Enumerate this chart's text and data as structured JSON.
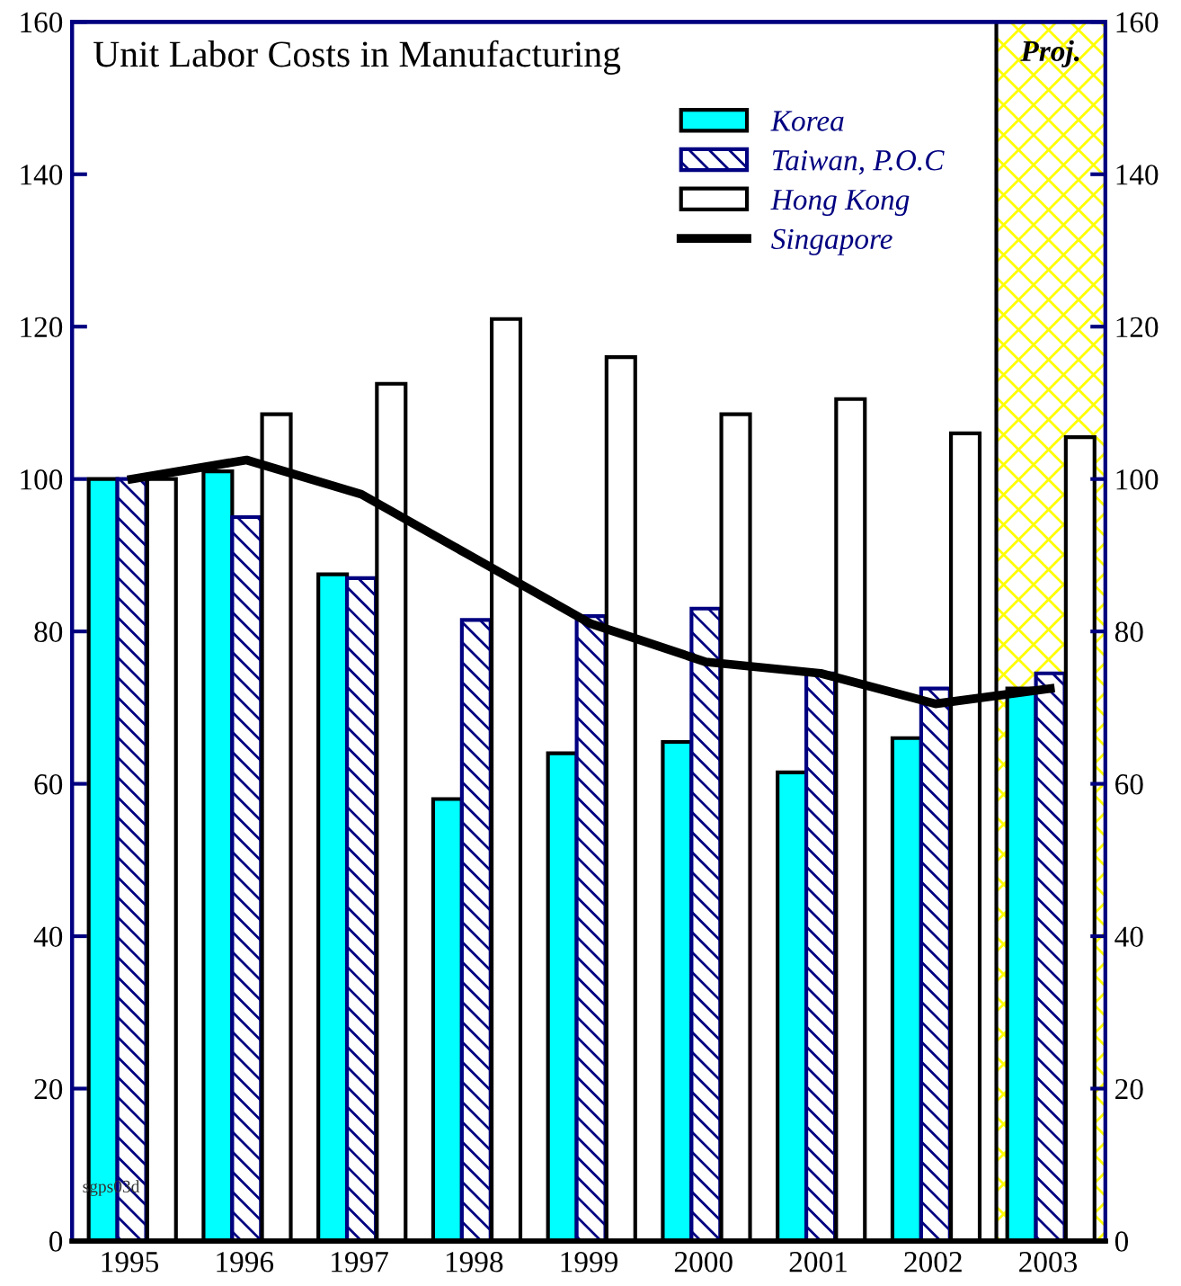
{
  "chart_data": {
    "type": "bar",
    "title": "Unit Labor Costs in Manufacturing",
    "categories": [
      "1995",
      "1996",
      "1997",
      "1998",
      "1999",
      "2000",
      "2001",
      "2002",
      "2003"
    ],
    "series": [
      {
        "name": "Korea",
        "color": "#00ffff",
        "values": [
          100,
          101,
          87.5,
          58,
          64,
          65.5,
          61.5,
          66,
          72.5
        ]
      },
      {
        "name": "Taiwan, P.O.C",
        "color": "#000080",
        "values": [
          100,
          95,
          87,
          81.5,
          82,
          83,
          74.5,
          72.5,
          74.5
        ]
      },
      {
        "name": "Hong Kong",
        "color": "#ffffff",
        "values": [
          100,
          108.5,
          112.5,
          121,
          116,
          108.5,
          110.5,
          106,
          105.5
        ]
      },
      {
        "name": "Singapore",
        "type": "line",
        "color": "#000000",
        "values": [
          100,
          102.5,
          98,
          89.5,
          81,
          76,
          74.5,
          70.5,
          72.5
        ]
      }
    ],
    "ylim": [
      0,
      160
    ],
    "yticks": [
      0,
      20,
      40,
      60,
      80,
      100,
      120,
      140,
      160
    ],
    "y2lim": [
      0,
      160
    ],
    "y2ticks": [
      0,
      20,
      40,
      60,
      80,
      100,
      120,
      140,
      160
    ],
    "bands": [
      {
        "axis": "x",
        "from": "2003",
        "to": "2003",
        "label": "Proj.",
        "color": "#ffff00"
      }
    ],
    "annotations": [
      "sgps03d"
    ],
    "legend": "top right",
    "grid": false,
    "marker": "none",
    "line_style": "solid"
  }
}
